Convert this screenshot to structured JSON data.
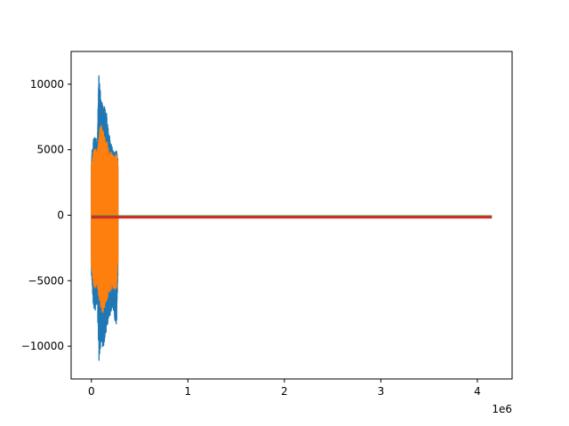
{
  "chart_data": {
    "type": "line",
    "title": "",
    "xlabel": "",
    "ylabel": "",
    "x_offset_label": "1e6",
    "xlim": [
      -210000,
      4360000
    ],
    "ylim": [
      -12500,
      12500
    ],
    "x_ticks": [
      0,
      1000000,
      2000000,
      3000000,
      4000000
    ],
    "x_tick_labels": [
      "0",
      "1",
      "2",
      "3",
      "4"
    ],
    "y_ticks": [
      -10000,
      -5000,
      0,
      5000,
      10000
    ],
    "y_tick_labels": [
      "−10000",
      "−5000",
      "0",
      "5000",
      "10000"
    ],
    "grid": false,
    "legend": false,
    "series": [
      {
        "color": "#1f77b4",
        "x": [
          0,
          20000,
          40000,
          60000,
          80000,
          100000,
          120000,
          140000,
          160000,
          180000,
          200000,
          220000,
          240000,
          260000,
          275000
        ],
        "y_max": [
          4500,
          5800,
          6100,
          5700,
          11400,
          8800,
          8700,
          8200,
          7800,
          6500,
          5500,
          5200,
          4800,
          5000,
          4500
        ],
        "y_min": [
          -4500,
          -7000,
          -7300,
          -6500,
          -11400,
          -9800,
          -10200,
          -9500,
          -8800,
          -8200,
          -7600,
          -7000,
          -8000,
          -8800,
          -4500
        ]
      },
      {
        "color": "#ff7f0e",
        "x": [
          0,
          20000,
          40000,
          60000,
          80000,
          100000,
          120000,
          140000,
          160000,
          180000,
          200000,
          220000,
          240000,
          260000,
          275000
        ],
        "y_max": [
          4000,
          4800,
          5300,
          5000,
          6300,
          7000,
          6500,
          6000,
          5700,
          5000,
          4800,
          4600,
          4500,
          4700,
          4000
        ],
        "y_min": [
          -4000,
          -5300,
          -5600,
          -5200,
          -6500,
          -7200,
          -7600,
          -7000,
          -6500,
          -6000,
          -5800,
          -5600,
          -5700,
          -5600,
          -4000
        ]
      },
      {
        "color": "#2ca02c",
        "x": [
          0,
          4150000
        ],
        "y": [
          -100,
          -100
        ]
      },
      {
        "color": "#d62728",
        "x": [
          0,
          4150000
        ],
        "y": [
          -150,
          -150
        ]
      }
    ]
  }
}
